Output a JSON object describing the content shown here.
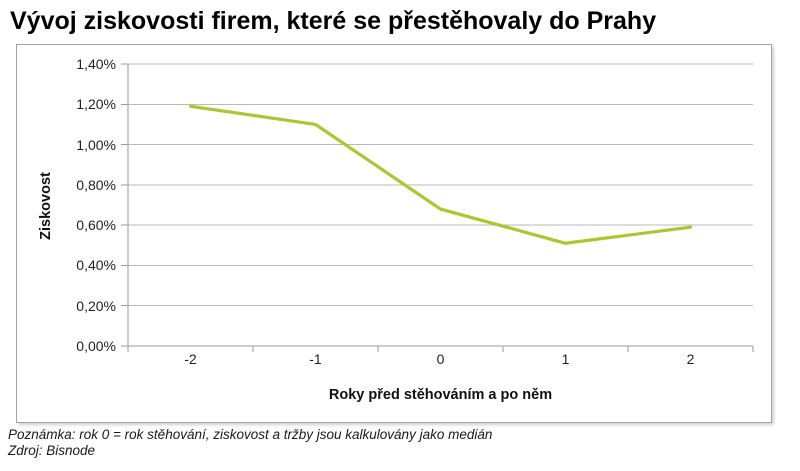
{
  "title": "Vývoj ziskovosti firem, které se přestěhovaly do Prahy",
  "chart_data": {
    "type": "line",
    "title": "Vývoj ziskovosti firem, které se přestěhovaly do Prahy",
    "categories": [
      "-2",
      "-1",
      "0",
      "1",
      "2"
    ],
    "series": [
      {
        "name": "Ziskovost",
        "values": [
          1.19,
          1.1,
          0.68,
          0.51,
          0.59
        ]
      }
    ],
    "values_unit": "%",
    "xlabel": "Roky před stěhováním a po něm",
    "ylabel": "Ziskovost",
    "ylim": [
      0,
      1.4
    ],
    "ytick_step": 0.2,
    "ytick_labels": [
      "0,00%",
      "0,20%",
      "0,40%",
      "0,60%",
      "0,80%",
      "1,00%",
      "1,20%",
      "1,40%"
    ],
    "grid": "horizontal",
    "legend": "none"
  },
  "footer": {
    "note": "Poznámka: rok 0 = rok stěhování, ziskovost a tržby jsou kalkulovány jako medián",
    "source": "Zdroj: Bisnode"
  },
  "colors": {
    "line": "#aac732",
    "gridline": "#b9b9b9",
    "axis": "#9a9a9a",
    "frame_border": "#a3a3a3",
    "title_text": "#000000",
    "tick_text": "#1f1f1f"
  }
}
